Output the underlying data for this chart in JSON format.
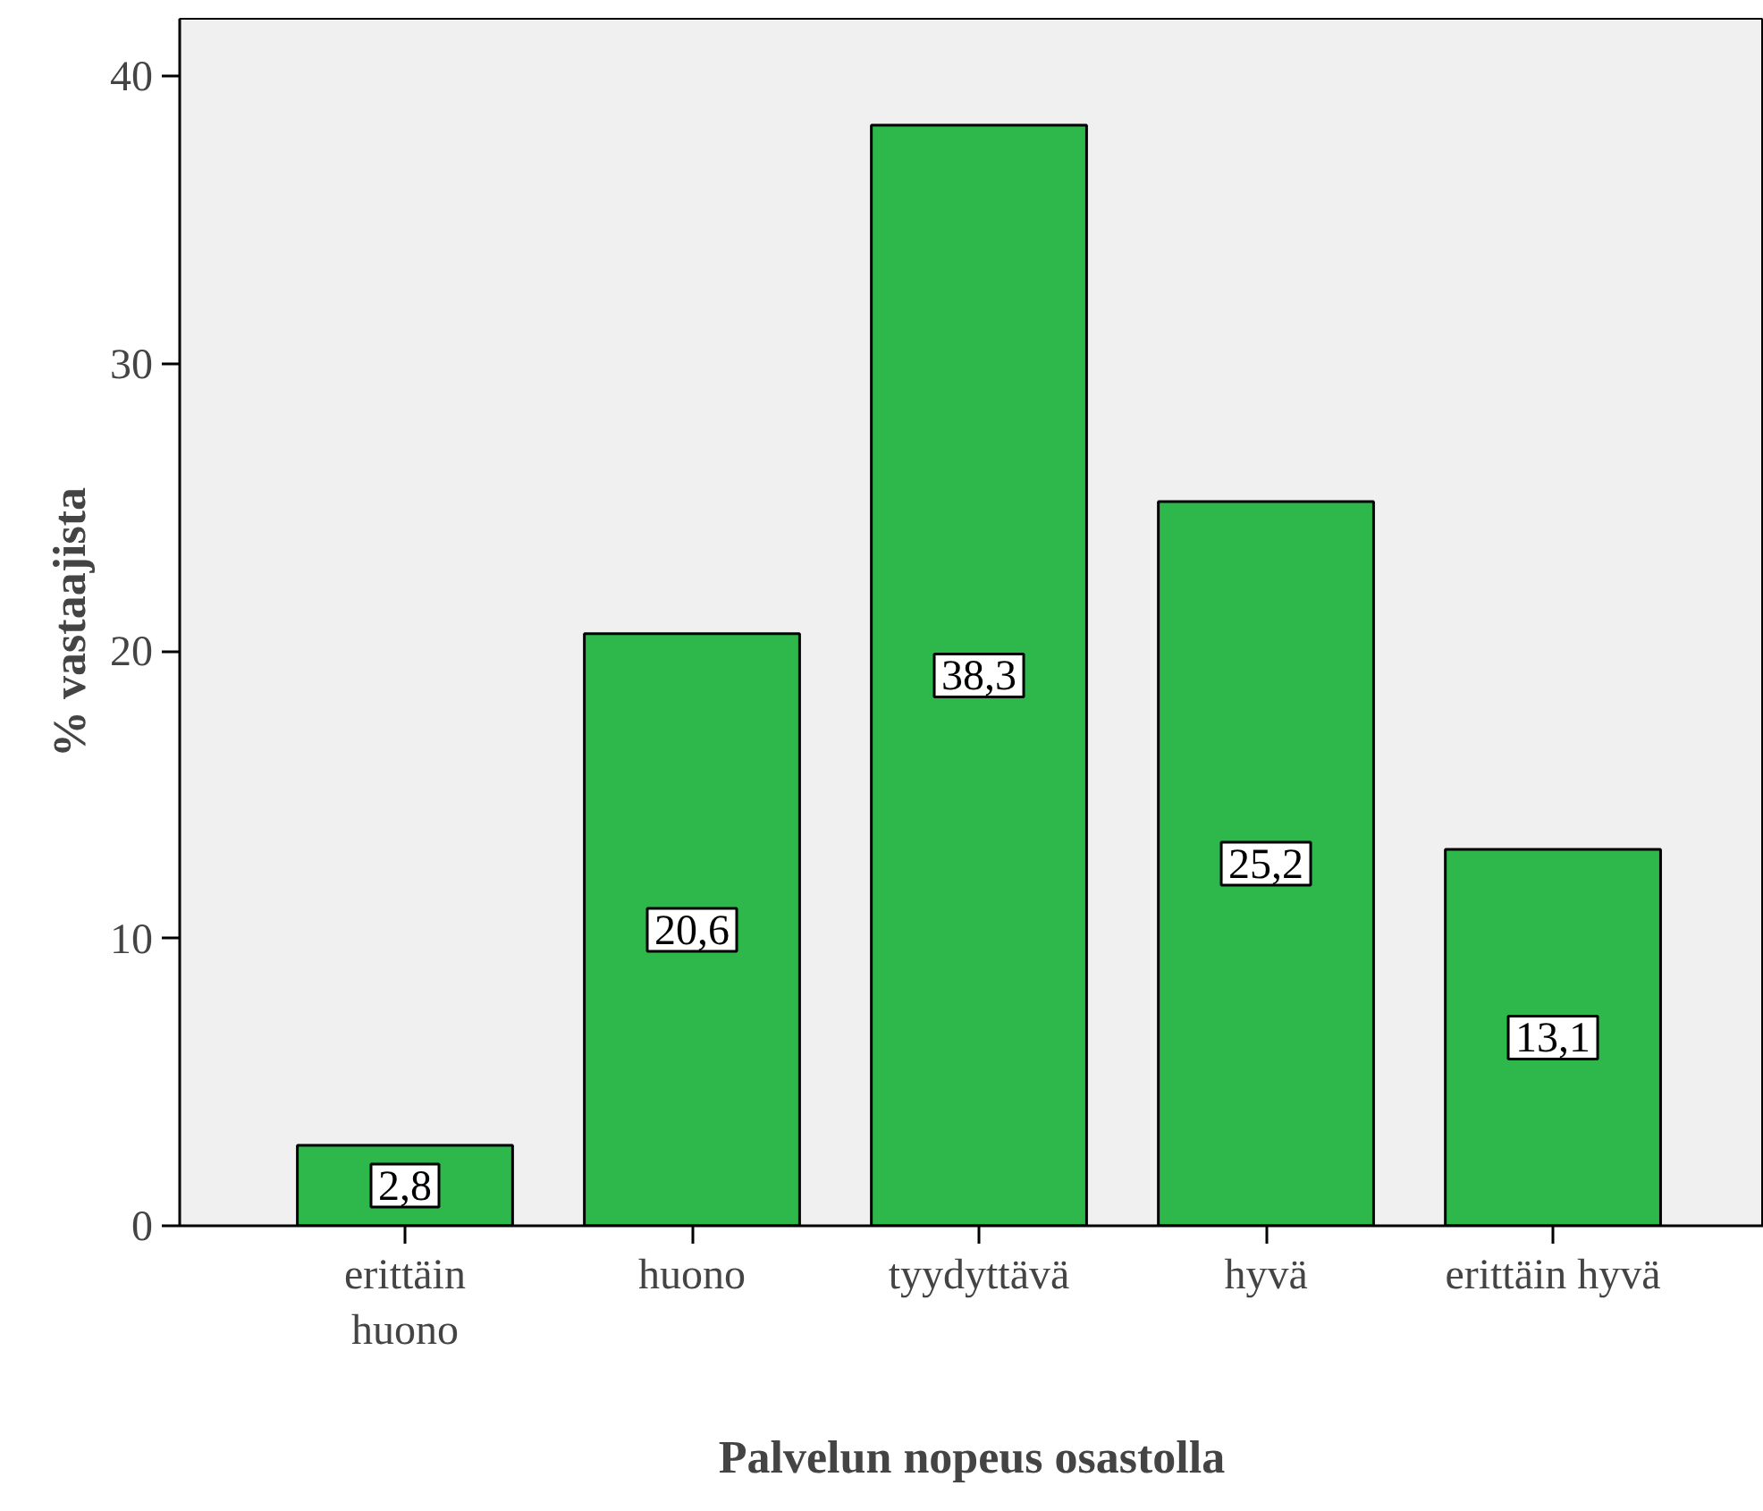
{
  "chart_data": {
    "type": "bar",
    "xlabel": "Palvelun nopeus osastolla",
    "ylabel": "% vastaajista",
    "categories": [
      "erittäin\nhuono",
      "huono",
      "tyydyttävä",
      "hyvä",
      "erittäin hyvä"
    ],
    "values": [
      2.8,
      20.6,
      38.3,
      25.2,
      13.1
    ],
    "value_labels": [
      "2,8",
      "20,6",
      "38,3",
      "25,2",
      "13,1"
    ],
    "color": "#2eb84b",
    "ylim": [
      0,
      42
    ],
    "yticks": [
      0,
      10,
      20,
      30,
      40
    ],
    "grid": false
  }
}
